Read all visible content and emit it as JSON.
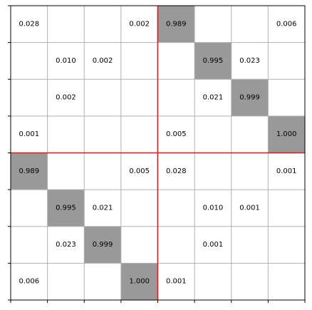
{
  "chart_data": {
    "type": "heatmap",
    "title": "",
    "xlabel": "",
    "ylabel": "",
    "rows": 8,
    "cols": 8,
    "grid": true,
    "divider_after_index": 4,
    "colors": {
      "highlight_cell": "#999999",
      "grid_line": "#b0b0b0",
      "divider_line": "#e8161b",
      "frame": "#000000",
      "background": "#ffffff"
    },
    "highlight_threshold": 0.5,
    "values": [
      [
        "0.028",
        "",
        "",
        "0.002",
        "0.989",
        "",
        "",
        "0.006"
      ],
      [
        "",
        "0.010",
        "0.002",
        "",
        "",
        "0.995",
        "0.023",
        ""
      ],
      [
        "",
        "0.002",
        "",
        "",
        "",
        "0.021",
        "0.999",
        ""
      ],
      [
        "0.001",
        "",
        "",
        "",
        "0.005",
        "",
        "",
        "1.000"
      ],
      [
        "0.989",
        "",
        "",
        "0.005",
        "0.028",
        "",
        "",
        "0.001"
      ],
      [
        "",
        "0.995",
        "0.021",
        "",
        "",
        "0.010",
        "0.001",
        ""
      ],
      [
        "",
        "0.023",
        "0.999",
        "",
        "",
        "0.001",
        "",
        ""
      ],
      [
        "0.006",
        "",
        "",
        "1.000",
        "0.001",
        "",
        "",
        ""
      ]
    ]
  }
}
